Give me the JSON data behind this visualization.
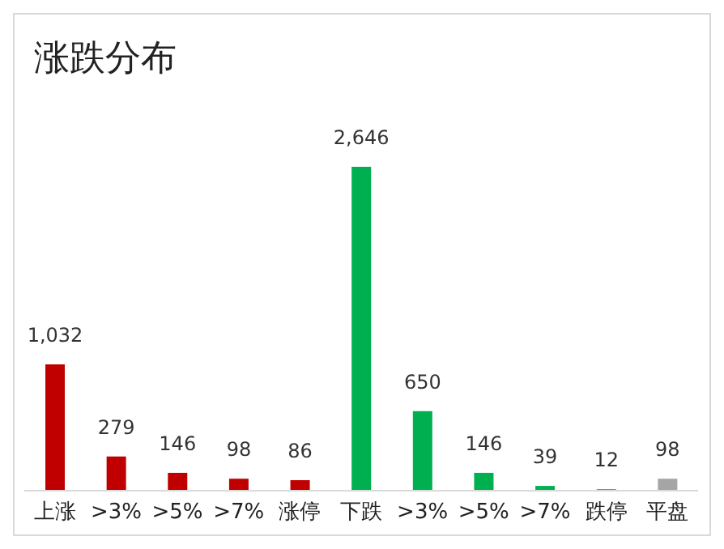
{
  "chart_data": {
    "type": "bar",
    "title": "涨跌分布",
    "categories": [
      "上涨",
      ">3%",
      ">5%",
      ">7%",
      "涨停",
      "下跌",
      ">3%",
      ">5%",
      ">7%",
      "跌停",
      "平盘"
    ],
    "values": [
      1032,
      279,
      146,
      98,
      86,
      2646,
      650,
      146,
      39,
      12,
      98
    ],
    "value_labels": [
      "1,032",
      "279",
      "146",
      "98",
      "86",
      "2,646",
      "650",
      "146",
      "39",
      "12",
      "98"
    ],
    "colors": [
      "#c00000",
      "#c00000",
      "#c00000",
      "#c00000",
      "#c00000",
      "#00b050",
      "#00b050",
      "#00b050",
      "#00b050",
      "#00b050",
      "#a5a5a5"
    ],
    "grid": false
  }
}
